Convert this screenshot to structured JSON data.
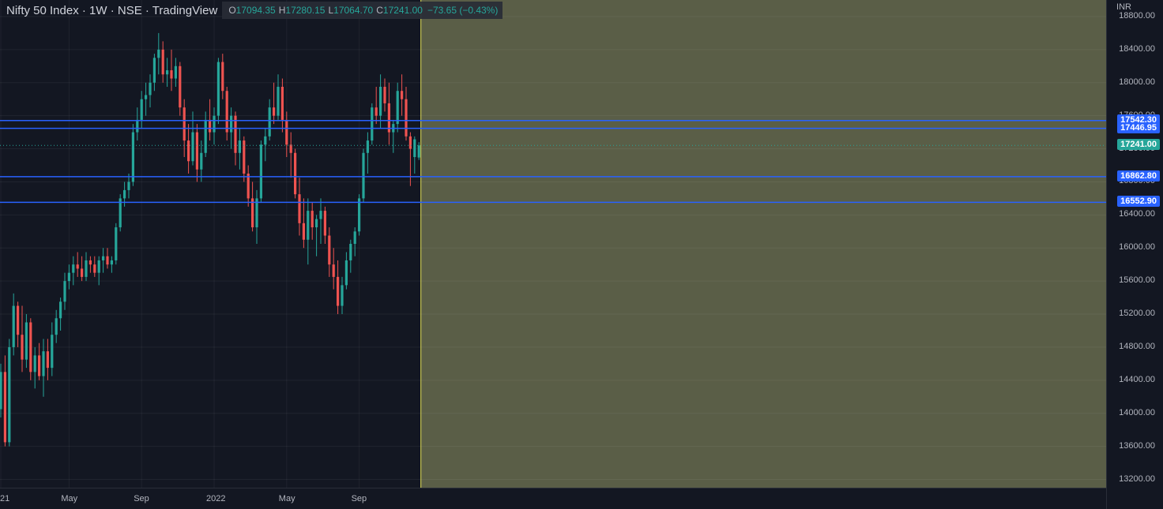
{
  "header": {
    "title": "Nifty 50 Index · 1W · NSE · TradingView",
    "ohlc": {
      "o_key": "O",
      "o": "17094.35",
      "h_key": "H",
      "h": "17280.15",
      "l_key": "L",
      "l": "17064.70",
      "c_key": "C",
      "c": "17241.00",
      "change": "−73.65 (−0.43%)"
    }
  },
  "axis": {
    "currency": "INR"
  },
  "colors": {
    "background": "#131722",
    "bull": "#26a69a",
    "bear": "#ef5350",
    "hline": "#2962ff",
    "shade": "#5a5e47",
    "vline": "#e6e45a",
    "last_price": "#26a69a"
  },
  "chart_data": {
    "type": "candlestick",
    "title": "Nifty 50 Index",
    "interval": "1W",
    "exchange": "NSE",
    "ylim": [
      13100,
      19000
    ],
    "y_ticks": [
      "13200.00",
      "13600.00",
      "14000.00",
      "14400.00",
      "14800.00",
      "15200.00",
      "15600.00",
      "16000.00",
      "16400.00",
      "16800.00",
      "17200.00",
      "17600.00",
      "18000.00",
      "18400.00",
      "18800.00"
    ],
    "x_ticks": [
      {
        "label": "21",
        "index": 0
      },
      {
        "label": "May",
        "index": 16
      },
      {
        "label": "Sep",
        "index": 33
      },
      {
        "label": "2022",
        "index": 50
      },
      {
        "label": "May",
        "index": 67
      },
      {
        "label": "Sep",
        "index": 84
      }
    ],
    "horizontal_levels": [
      "17542.30",
      "17446.95",
      "16862.80",
      "16552.90"
    ],
    "last_price": "17241.00",
    "shaded_region": "future (after last bar)",
    "candles": [
      [
        14050,
        14600,
        13950,
        14500
      ],
      [
        14500,
        14700,
        13600,
        13650
      ],
      [
        13650,
        14900,
        13600,
        14800
      ],
      [
        14800,
        15450,
        14700,
        15300
      ],
      [
        15300,
        15350,
        14800,
        14950
      ],
      [
        14950,
        15300,
        14500,
        14650
      ],
      [
        14650,
        15200,
        14550,
        15100
      ],
      [
        15100,
        15150,
        14400,
        14500
      ],
      [
        14500,
        14800,
        14300,
        14700
      ],
      [
        14700,
        14850,
        14400,
        14450
      ],
      [
        14450,
        14900,
        14200,
        14750
      ],
      [
        14750,
        14900,
        14400,
        14550
      ],
      [
        14550,
        15100,
        14450,
        14950
      ],
      [
        14950,
        15250,
        14850,
        15150
      ],
      [
        15150,
        15400,
        15000,
        15350
      ],
      [
        15350,
        15700,
        15250,
        15600
      ],
      [
        15600,
        15800,
        15500,
        15700
      ],
      [
        15700,
        15900,
        15550,
        15800
      ],
      [
        15800,
        15950,
        15650,
        15750
      ],
      [
        15750,
        15900,
        15600,
        15650
      ],
      [
        15650,
        15950,
        15600,
        15850
      ],
      [
        15850,
        15900,
        15700,
        15800
      ],
      [
        15800,
        15900,
        15650,
        15700
      ],
      [
        15700,
        15900,
        15550,
        15850
      ],
      [
        15850,
        16000,
        15700,
        15900
      ],
      [
        15900,
        16000,
        15750,
        15800
      ],
      [
        15800,
        15900,
        15700,
        15850
      ],
      [
        15850,
        16300,
        15800,
        16250
      ],
      [
        16250,
        16650,
        16200,
        16600
      ],
      [
        16600,
        16800,
        16500,
        16700
      ],
      [
        16700,
        16900,
        16600,
        16800
      ],
      [
        16800,
        17500,
        16750,
        17400
      ],
      [
        17400,
        17700,
        17300,
        17550
      ],
      [
        17550,
        17900,
        17450,
        17800
      ],
      [
        17800,
        18000,
        17600,
        17850
      ],
      [
        17850,
        18100,
        17700,
        18000
      ],
      [
        18000,
        18350,
        17900,
        18300
      ],
      [
        18300,
        18600,
        18100,
        18400
      ],
      [
        18400,
        18500,
        18000,
        18100
      ],
      [
        18100,
        18300,
        17950,
        18150
      ],
      [
        18150,
        18400,
        17900,
        18050
      ],
      [
        18050,
        18300,
        17950,
        18200
      ],
      [
        18200,
        18250,
        17600,
        17700
      ],
      [
        17700,
        17800,
        17100,
        17300
      ],
      [
        17300,
        17500,
        16900,
        17050
      ],
      [
        17050,
        17650,
        17000,
        17400
      ],
      [
        17400,
        17500,
        16800,
        16950
      ],
      [
        16950,
        17300,
        16800,
        17150
      ],
      [
        17150,
        17650,
        17100,
        17550
      ],
      [
        17550,
        17800,
        17300,
        17400
      ],
      [
        17400,
        17700,
        17250,
        17600
      ],
      [
        17600,
        18300,
        17500,
        18250
      ],
      [
        18250,
        18350,
        17800,
        17900
      ],
      [
        17900,
        17950,
        17300,
        17400
      ],
      [
        17400,
        17700,
        17200,
        17600
      ],
      [
        17600,
        17650,
        17000,
        17150
      ],
      [
        17150,
        17450,
        16950,
        17300
      ],
      [
        17300,
        17350,
        16800,
        16900
      ],
      [
        16900,
        17000,
        16500,
        16600
      ],
      [
        16600,
        16800,
        16200,
        16250
      ],
      [
        16250,
        16700,
        16050,
        16600
      ],
      [
        16600,
        17300,
        16550,
        17250
      ],
      [
        17250,
        17450,
        17050,
        17350
      ],
      [
        17350,
        17800,
        17300,
        17700
      ],
      [
        17700,
        18000,
        17500,
        17600
      ],
      [
        17600,
        18100,
        17550,
        17950
      ],
      [
        17950,
        18050,
        17400,
        17550
      ],
      [
        17550,
        17650,
        17100,
        17250
      ],
      [
        17250,
        17400,
        16850,
        17150
      ],
      [
        17150,
        17200,
        16600,
        16650
      ],
      [
        16650,
        16850,
        16150,
        16300
      ],
      [
        16300,
        16600,
        16000,
        16100
      ],
      [
        16100,
        16600,
        15800,
        16450
      ],
      [
        16450,
        16550,
        16100,
        16250
      ],
      [
        16250,
        16400,
        15900,
        16350
      ],
      [
        16350,
        16600,
        16050,
        16450
      ],
      [
        16450,
        16500,
        16050,
        16150
      ],
      [
        16150,
        16250,
        15650,
        15800
      ],
      [
        15800,
        16000,
        15500,
        15650
      ],
      [
        15650,
        15850,
        15200,
        15300
      ],
      [
        15300,
        15650,
        15200,
        15550
      ],
      [
        15550,
        15950,
        15500,
        15850
      ],
      [
        15850,
        16100,
        15700,
        16050
      ],
      [
        16050,
        16250,
        15900,
        16200
      ],
      [
        16200,
        16650,
        16150,
        16600
      ],
      [
        16600,
        17200,
        16550,
        17150
      ],
      [
        17150,
        17400,
        16900,
        17300
      ],
      [
        17300,
        17750,
        17250,
        17700
      ],
      [
        17700,
        17950,
        17500,
        17600
      ],
      [
        17600,
        18100,
        17450,
        17950
      ],
      [
        17950,
        18050,
        17650,
        17750
      ],
      [
        17750,
        18000,
        17250,
        17400
      ],
      [
        17400,
        17550,
        17150,
        17500
      ],
      [
        17500,
        18000,
        17400,
        17900
      ],
      [
        17900,
        18100,
        17600,
        17800
      ],
      [
        17800,
        17950,
        17300,
        17350
      ],
      [
        17350,
        17400,
        16750,
        17200
      ],
      [
        17100,
        17350,
        16900,
        17314.65
      ],
      [
        17094.35,
        17280.15,
        17064.7,
        17241.0
      ]
    ]
  }
}
